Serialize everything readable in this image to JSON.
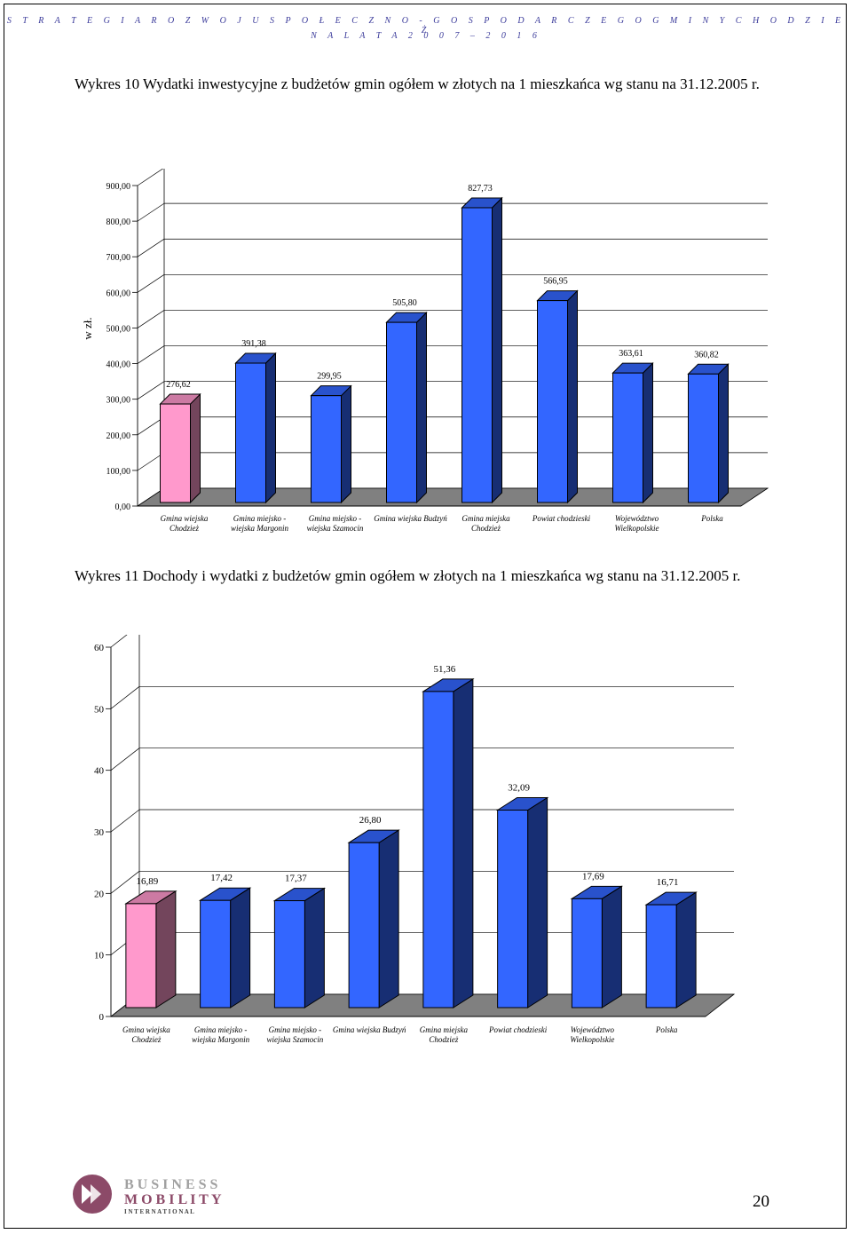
{
  "header": {
    "line1": "S T R A T E G I A   R O Z W O J U   S P O Ł E C Z N O  -  G O S P O D A R C Z E G O   G M I N Y   C H O D Z I E Ż",
    "line2": "N A   L A T A   2 0 0 7  –  2 0 1 6"
  },
  "chart1_title": "Wykres 10 Wydatki inwestycyjne z budżetów gmin ogółem w złotych na 1 mieszkańca wg stanu na 31.12.2005 r.",
  "chart2_title": "Wykres 11 Dochody i wydatki z budżetów gmin ogółem w złotych na 1 mieszkańca wg stanu na 31.12.2005 r.",
  "colors": {
    "bar_blue": "#3366ff",
    "bar_pink": "#ff99cc",
    "floor": "#808080"
  },
  "chart_data": [
    {
      "type": "bar",
      "title": "Wykres 10 Wydatki inwestycyjne z budżetów gmin ogółem w złotych na 1 mieszkańca wg stanu na 31.12.2005 r.",
      "ylabel": "w zł.",
      "ylim": [
        0,
        900
      ],
      "yticks": [
        "0,00",
        "100,00",
        "200,00",
        "300,00",
        "400,00",
        "500,00",
        "600,00",
        "700,00",
        "800,00",
        "900,00"
      ],
      "categories": [
        [
          "Gmina wiejska",
          "Chodzież"
        ],
        [
          "Gmina miejsko -",
          "wiejska Margonin"
        ],
        [
          "Gmina miejsko -",
          "wiejska Szamocin"
        ],
        [
          "Gmina wiejska Budzyń"
        ],
        [
          "Gmina miejska",
          "Chodzież"
        ],
        [
          "Powiat chodzieski"
        ],
        [
          "Województwo",
          "Wielkopolskie"
        ],
        [
          "Polska"
        ]
      ],
      "values": [
        276.62,
        391.38,
        299.95,
        505.8,
        827.73,
        566.95,
        363.61,
        360.82
      ],
      "labels": [
        "276,62",
        "391,38",
        "299,95",
        "505,80",
        "827,73",
        "566,95",
        "363,61",
        "360,82"
      ],
      "highlight_index": 0,
      "grid": true
    },
    {
      "type": "bar",
      "title": "Wykres 11 Dochody i wydatki z budżetów gmin ogółem w złotych na 1 mieszkańca wg stanu na 31.12.2005 r.",
      "ylabel": "",
      "ylim": [
        0,
        60
      ],
      "yticks": [
        "0",
        "10",
        "20",
        "30",
        "40",
        "50",
        "60"
      ],
      "categories": [
        [
          "Gmina wiejska",
          "Chodzież"
        ],
        [
          "Gmina miejsko -",
          "wiejska Margonin"
        ],
        [
          "Gmina miejsko -",
          "wiejska Szamocin"
        ],
        [
          "Gmina wiejska Budzyń"
        ],
        [
          "Gmina miejska",
          "Chodzież"
        ],
        [
          "Powiat chodzieski"
        ],
        [
          "Województwo",
          "Wielkopolskie"
        ],
        [
          "Polska"
        ]
      ],
      "values": [
        16.89,
        17.42,
        17.37,
        26.8,
        51.36,
        32.09,
        17.69,
        16.71
      ],
      "labels": [
        "16,89",
        "17,42",
        "17,37",
        "26,80",
        "51,36",
        "32,09",
        "17,69",
        "16,71"
      ],
      "highlight_index": 0,
      "grid": true
    }
  ],
  "footer": {
    "logo_line1": "B U S I N E S S",
    "logo_line2": "M O B I L I T Y",
    "logo_line3": "I N T E R N A T I O N A L",
    "page_number": "20"
  }
}
